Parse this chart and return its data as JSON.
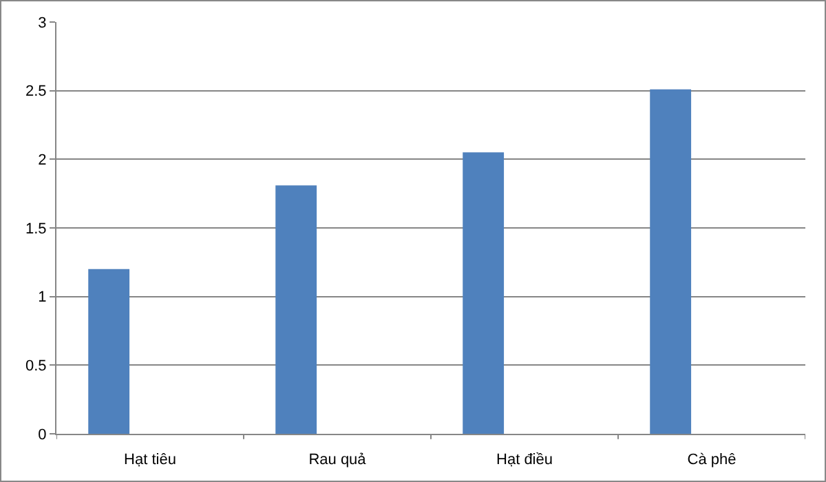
{
  "chart_data": {
    "type": "bar",
    "categories": [
      "Hạt tiêu",
      "Rau quả",
      "Hạt điều",
      "Cà phê"
    ],
    "values": [
      1.2,
      1.81,
      2.05,
      2.51
    ],
    "color": "#4f81bd",
    "ylim": [
      0,
      3
    ],
    "yticks": [
      0,
      0.5,
      1,
      1.5,
      2,
      2.5,
      3
    ],
    "grid": "y"
  }
}
